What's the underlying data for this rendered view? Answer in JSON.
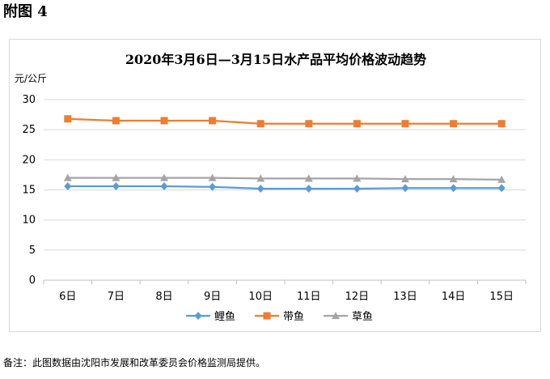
{
  "page": {
    "heading": "附图 4",
    "footnote": "备注：此图数据由沈阳市发展和改革委员会价格监测局提供。"
  },
  "chart_data": {
    "type": "line",
    "title": "2020年3月6日—3月15日水产品平均价格波动趋势",
    "ylabel": "元/公斤",
    "xlabel": "",
    "ylim": [
      0,
      30
    ],
    "yticks": [
      0,
      5,
      10,
      15,
      20,
      25,
      30
    ],
    "grid": true,
    "legend": "bottom",
    "categories": [
      "6日",
      "7日",
      "8日",
      "9日",
      "10日",
      "11日",
      "12日",
      "13日",
      "14日",
      "15日"
    ],
    "series": [
      {
        "name": "鲤鱼",
        "color": "#5b9bd5",
        "marker": "diamond",
        "values": [
          15.6,
          15.6,
          15.6,
          15.5,
          15.2,
          15.2,
          15.2,
          15.3,
          15.3,
          15.3
        ]
      },
      {
        "name": "带鱼",
        "color": "#ed7d31",
        "marker": "square",
        "values": [
          26.8,
          26.5,
          26.5,
          26.5,
          26.0,
          26.0,
          26.0,
          26.0,
          26.0,
          26.0
        ]
      },
      {
        "name": "草鱼",
        "color": "#a5a5a5",
        "marker": "triangle",
        "values": [
          17.0,
          17.0,
          17.0,
          17.0,
          16.9,
          16.9,
          16.9,
          16.8,
          16.8,
          16.7
        ]
      }
    ]
  }
}
